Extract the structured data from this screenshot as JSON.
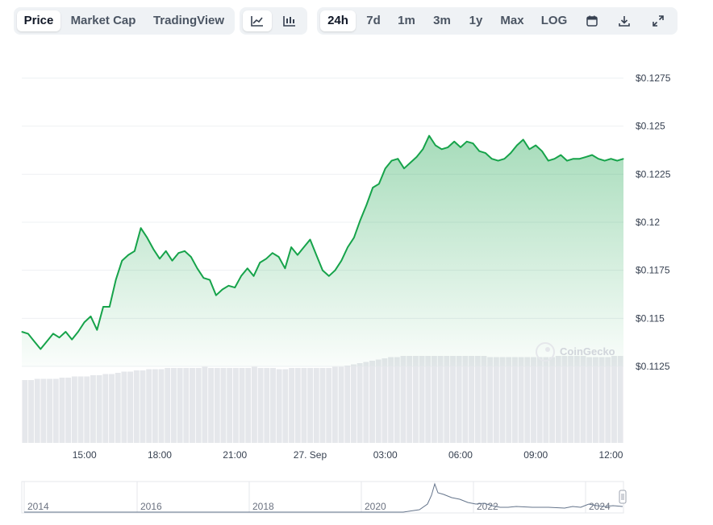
{
  "toolbar": {
    "view_tabs": [
      "Price",
      "Market Cap",
      "TradingView"
    ],
    "active_view": "Price",
    "chart_types": [
      "line-chart-icon",
      "candlestick-icon"
    ],
    "active_chart_type": "line-chart-icon",
    "ranges": [
      "24h",
      "7d",
      "1m",
      "3m",
      "1y",
      "Max",
      "LOG"
    ],
    "active_range": "24h",
    "tool_icons": [
      "calendar-icon",
      "download-icon",
      "expand-icon"
    ]
  },
  "watermark": "CoinGecko",
  "colors": {
    "line": "#16a34a",
    "fill": "#16a34a",
    "volume": "#e5e7eb",
    "grid": "#eef0f3",
    "accent_active": "#ffffff"
  },
  "chart_data": {
    "type": "area",
    "title": "",
    "xlabel": "",
    "ylabel": "",
    "x_ticks": [
      "15:00",
      "18:00",
      "21:00",
      "27. Sep",
      "03:00",
      "06:00",
      "09:00",
      "12:00"
    ],
    "y_ticks": [
      "$0.1125",
      "$0.115",
      "$0.1175",
      "$0.12",
      "$0.1225",
      "$0.125",
      "$0.1275"
    ],
    "y_tick_values": [
      0.1125,
      0.115,
      0.1175,
      0.12,
      0.1225,
      0.125,
      0.1275
    ],
    "ylim": [
      0.1125,
      0.1275
    ],
    "grid": true,
    "series": [
      {
        "x_hours": [
          0,
          0.25,
          0.5,
          0.75,
          1,
          1.25,
          1.5,
          1.75,
          2,
          2.25,
          2.5,
          2.75,
          3,
          3.25,
          3.5,
          3.75,
          4,
          4.25,
          4.5,
          4.75,
          5,
          5.25,
          5.5,
          5.75,
          6,
          6.25,
          6.5,
          6.75,
          7,
          7.25,
          7.5,
          7.75,
          8,
          8.25,
          8.5,
          8.75,
          9,
          9.25,
          9.5,
          9.75,
          10,
          10.25,
          10.5,
          10.75,
          11,
          11.25,
          11.5,
          11.75,
          12,
          12.25,
          12.5,
          12.75,
          13,
          13.25,
          13.5,
          13.75,
          14,
          14.25,
          14.5,
          14.75,
          15,
          15.25,
          15.5,
          15.75,
          16,
          16.25,
          16.5,
          16.75,
          17,
          17.25,
          17.5,
          17.75,
          18,
          18.25,
          18.5,
          18.75,
          19,
          19.25,
          19.5,
          19.75,
          20,
          20.25,
          20.5,
          20.75,
          21,
          21.25,
          21.5,
          21.75,
          22,
          22.25,
          22.5,
          22.75,
          23,
          23.25,
          23.5,
          23.75,
          24
        ],
        "values": [
          0.1143,
          0.1142,
          0.1138,
          0.1134,
          0.1138,
          0.1142,
          0.114,
          0.1143,
          0.1139,
          0.1143,
          0.1148,
          0.1151,
          0.1144,
          0.1156,
          0.1156,
          0.117,
          0.118,
          0.1183,
          0.1185,
          0.1197,
          0.1192,
          0.1186,
          0.1181,
          0.1185,
          0.118,
          0.1184,
          0.1185,
          0.1182,
          0.1176,
          0.1171,
          0.117,
          0.1162,
          0.1165,
          0.1167,
          0.1166,
          0.1172,
          0.1176,
          0.1172,
          0.1179,
          0.1181,
          0.1184,
          0.1182,
          0.1176,
          0.1187,
          0.1183,
          0.1187,
          0.1191,
          0.1183,
          0.1175,
          0.1172,
          0.1175,
          0.118,
          0.1187,
          0.1192,
          0.1201,
          0.1209,
          0.1218,
          0.122,
          0.1228,
          0.1232,
          0.1233,
          0.1228,
          0.1231,
          0.1234,
          0.1238,
          0.1245,
          0.124,
          0.1238,
          0.1239,
          0.1242,
          0.1239,
          0.1242,
          0.1241,
          0.1237,
          0.1236,
          0.1233,
          0.1232,
          0.1233,
          0.1236,
          0.124,
          0.1243,
          0.1238,
          0.124,
          0.1237,
          0.1232,
          0.1233,
          0.1235,
          0.1232,
          0.1233,
          0.1233,
          0.1234,
          0.1235,
          0.1233,
          0.1232,
          0.1233,
          0.1232,
          0.1233
        ]
      }
    ],
    "volume": {
      "note": "relative volume bars at bottom of chart",
      "values": [
        0.52,
        0.52,
        0.53,
        0.53,
        0.53,
        0.53,
        0.54,
        0.54,
        0.55,
        0.55,
        0.55,
        0.56,
        0.56,
        0.57,
        0.57,
        0.58,
        0.59,
        0.59,
        0.6,
        0.6,
        0.61,
        0.61,
        0.61,
        0.62,
        0.62,
        0.62,
        0.62,
        0.62,
        0.62,
        0.63,
        0.62,
        0.62,
        0.62,
        0.62,
        0.62,
        0.62,
        0.62,
        0.63,
        0.62,
        0.62,
        0.62,
        0.61,
        0.61,
        0.62,
        0.62,
        0.62,
        0.62,
        0.62,
        0.62,
        0.62,
        0.63,
        0.63,
        0.64,
        0.65,
        0.66,
        0.67,
        0.68,
        0.69,
        0.7,
        0.71,
        0.71,
        0.72,
        0.72,
        0.72,
        0.72,
        0.72,
        0.72,
        0.72,
        0.72,
        0.72,
        0.72,
        0.72,
        0.72,
        0.72,
        0.72,
        0.71,
        0.71,
        0.71,
        0.71,
        0.71,
        0.71,
        0.71,
        0.71,
        0.71,
        0.71,
        0.71,
        0.72,
        0.72,
        0.72,
        0.72,
        0.72,
        0.71,
        0.71,
        0.71,
        0.71,
        0.72,
        0.72
      ]
    },
    "navigator": {
      "x_ticks": [
        "2014",
        "2016",
        "2018",
        "2020",
        "2022",
        "2024"
      ]
    }
  }
}
